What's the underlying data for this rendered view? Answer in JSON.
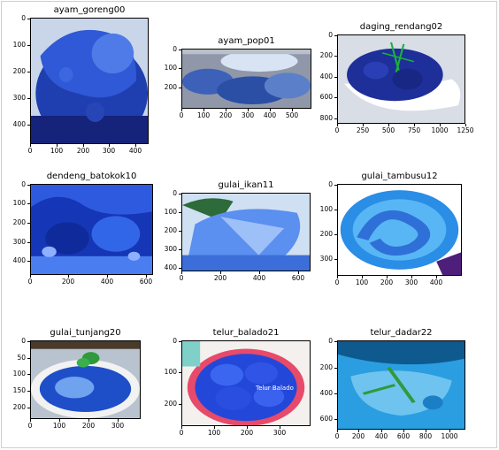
{
  "panels": [
    {
      "title": "ayam_goreng00",
      "x_ticks": [
        "0",
        "100",
        "200",
        "300",
        "400"
      ],
      "y_ticks": [
        "0",
        "100",
        "200",
        "300",
        "400"
      ]
    },
    {
      "title": "ayam_pop01",
      "x_ticks": [
        "0",
        "100",
        "200",
        "300",
        "400",
        "500"
      ],
      "y_ticks": [
        "0",
        "100",
        "200"
      ]
    },
    {
      "title": "daging_rendang02",
      "x_ticks": [
        "0",
        "250",
        "500",
        "750",
        "1000",
        "1250"
      ],
      "y_ticks": [
        "0",
        "200",
        "400",
        "600",
        "800"
      ]
    },
    {
      "title": "dendeng_batokok10",
      "x_ticks": [
        "0",
        "200",
        "400",
        "600"
      ],
      "y_ticks": [
        "0",
        "100",
        "200",
        "300",
        "400"
      ]
    },
    {
      "title": "gulai_ikan11",
      "x_ticks": [
        "0",
        "200",
        "400",
        "600"
      ],
      "y_ticks": [
        "0",
        "100",
        "200",
        "300",
        "400"
      ]
    },
    {
      "title": "gulai_tambusu12",
      "x_ticks": [
        "0",
        "100",
        "200",
        "300",
        "400"
      ],
      "y_ticks": [
        "0",
        "100",
        "200",
        "300"
      ]
    },
    {
      "title": "gulai_tunjang20",
      "x_ticks": [
        "0",
        "100",
        "200",
        "300"
      ],
      "y_ticks": [
        "0",
        "50",
        "100",
        "150",
        "200"
      ]
    },
    {
      "title": "telur_balado21",
      "x_ticks": [
        "0",
        "100",
        "200",
        "300"
      ],
      "y_ticks": [
        "0",
        "100",
        "200"
      ]
    },
    {
      "title": "telur_dadar22",
      "x_ticks": [
        "0",
        "200",
        "400",
        "600",
        "800",
        "1000"
      ],
      "y_ticks": [
        "0",
        "200",
        "400",
        "600"
      ]
    }
  ],
  "overlay_text": {
    "watermark": "Telur Balado"
  }
}
